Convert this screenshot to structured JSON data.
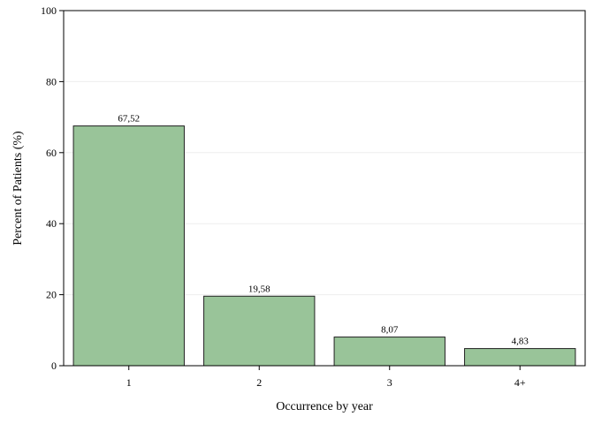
{
  "chart_data": {
    "type": "bar",
    "categories": [
      "1",
      "2",
      "3",
      "4+"
    ],
    "values": [
      67.52,
      19.58,
      8.07,
      4.83
    ],
    "value_labels": [
      "67,52",
      "19,58",
      "8,07",
      "4,83"
    ],
    "title": "",
    "xlabel": "Occurrence by year",
    "ylabel": "Percent of Patients (%)",
    "ylim": [
      0,
      100
    ],
    "yticks": [
      0,
      20,
      40,
      60,
      80,
      100
    ],
    "grid": true,
    "legend": "none",
    "colors": {
      "bar_fill": "#99c499",
      "bar_stroke": "#222222",
      "grid": "#eeeeee",
      "frame": "#000000"
    }
  }
}
